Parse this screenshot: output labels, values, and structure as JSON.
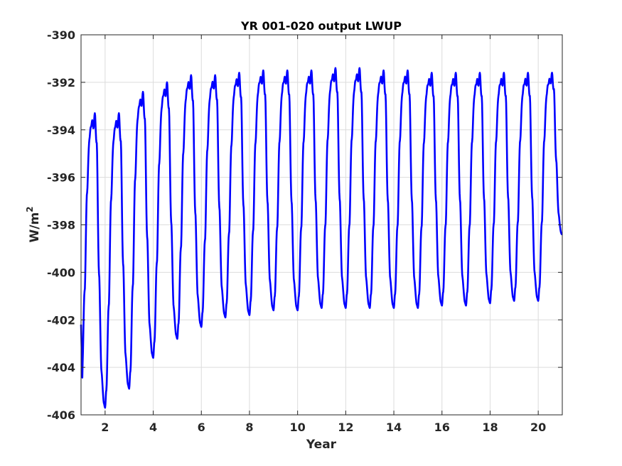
{
  "chart_data": {
    "type": "line",
    "title": "YR 001-020 output LWUP",
    "xlabel": "Year",
    "ylabel": "W/m",
    "ylabel_superscript": "2",
    "xlim": [
      1,
      21
    ],
    "ylim": [
      -406,
      -390
    ],
    "xticks": [
      2,
      4,
      6,
      8,
      10,
      12,
      14,
      16,
      18,
      20
    ],
    "yticks": [
      -406,
      -404,
      -402,
      -400,
      -398,
      -396,
      -394,
      -392,
      -390
    ],
    "grid": true,
    "line_color": "#0000ff",
    "cycles": [
      {
        "year_start": 1,
        "trough": -404.7,
        "peak": -393.4
      },
      {
        "year_start": 2,
        "trough": -405.7,
        "peak": -393.4
      },
      {
        "year_start": 3,
        "trough": -404.9,
        "peak": -392.5
      },
      {
        "year_start": 4,
        "trough": -403.6,
        "peak": -392.1
      },
      {
        "year_start": 5,
        "trough": -402.8,
        "peak": -391.8
      },
      {
        "year_start": 6,
        "trough": -402.3,
        "peak": -391.8
      },
      {
        "year_start": 7,
        "trough": -401.9,
        "peak": -391.7
      },
      {
        "year_start": 8,
        "trough": -401.8,
        "peak": -391.6
      },
      {
        "year_start": 9,
        "trough": -401.6,
        "peak": -391.6
      },
      {
        "year_start": 10,
        "trough": -401.6,
        "peak": -391.6
      },
      {
        "year_start": 11,
        "trough": -401.5,
        "peak": -391.5
      },
      {
        "year_start": 12,
        "trough": -401.5,
        "peak": -391.5
      },
      {
        "year_start": 13,
        "trough": -401.5,
        "peak": -391.6
      },
      {
        "year_start": 14,
        "trough": -401.5,
        "peak": -391.6
      },
      {
        "year_start": 15,
        "trough": -401.5,
        "peak": -391.7
      },
      {
        "year_start": 16,
        "trough": -401.4,
        "peak": -391.7
      },
      {
        "year_start": 17,
        "trough": -401.4,
        "peak": -391.7
      },
      {
        "year_start": 18,
        "trough": -401.3,
        "peak": -391.7
      },
      {
        "year_start": 19,
        "trough": -401.2,
        "peak": -391.7
      },
      {
        "year_start": 20,
        "trough": -401.2,
        "peak": -391.7
      }
    ],
    "series_start_value": -402.2,
    "series_end_value": -398.4
  }
}
